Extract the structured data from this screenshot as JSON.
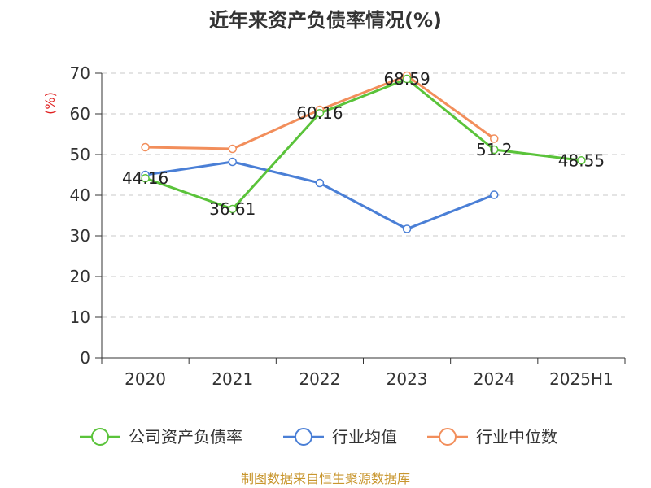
{
  "chart_data": {
    "type": "line",
    "title": "近年来资产负债率情况(%)",
    "ylabel": "(%)",
    "xlabel": "",
    "categories": [
      "2020",
      "2021",
      "2022",
      "2023",
      "2024",
      "2025H1"
    ],
    "ylim": [
      0,
      70
    ],
    "yticks": [
      0,
      10,
      20,
      30,
      40,
      50,
      60,
      70
    ],
    "grid": true,
    "legend_position": "bottom",
    "series": [
      {
        "name": "公司资产负债率",
        "color": "#5ac33a",
        "values": [
          44.16,
          36.61,
          60.16,
          68.59,
          51.2,
          48.55
        ],
        "labels": [
          "44.16",
          "36.61",
          "60.16",
          "68.59",
          "51.2",
          "48.55"
        ]
      },
      {
        "name": "行业均值",
        "color": "#4a7fd6",
        "values": [
          45.0,
          48.2,
          43.0,
          31.7,
          40.1,
          null
        ]
      },
      {
        "name": "行业中位数",
        "color": "#f28e5b",
        "values": [
          51.8,
          51.4,
          61.0,
          69.4,
          53.9,
          null
        ]
      }
    ]
  },
  "footer": "制图数据来自恒生聚源数据库"
}
